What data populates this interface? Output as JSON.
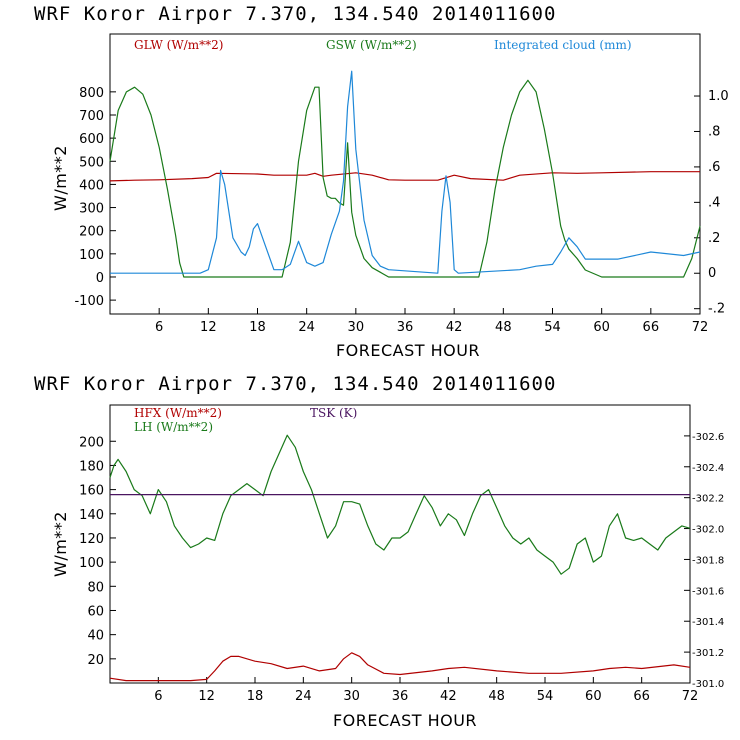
{
  "colors": {
    "red": "#b00000",
    "green": "#1a7a1a",
    "blue": "#1e88d8",
    "purple": "#4a1560",
    "axis": "#000000"
  },
  "charts": [
    {
      "title": "WRF   Koror Airpor    7.370, 134.540  2014011600",
      "xlabel": "FORECAST HOUR",
      "ylabel": "W/m**2",
      "legend": [
        "GLW (W/m**2)",
        "GSW (W/m**2)",
        "Integrated cloud (mm)"
      ]
    },
    {
      "title": "WRF   Koror Airpor    7.370, 134.540  2014011600",
      "xlabel": "FORECAST HOUR",
      "ylabel": "W/m**2",
      "legend": [
        "HFX (W/m**2)",
        "LH  (W/m**2)",
        "TSK (K)"
      ]
    }
  ],
  "chart_data": [
    {
      "type": "line",
      "title": "WRF   Koror Airpor    7.370, 134.540  2014011600",
      "xlabel": "FORECAST HOUR",
      "ylabel": "W/m**2",
      "xlim": [
        0,
        72
      ],
      "ylim": [
        -160,
        1050
      ],
      "y2lim": [
        -0.23,
        1.35
      ],
      "xticks": [
        6,
        12,
        18,
        24,
        30,
        36,
        42,
        48,
        54,
        60,
        66,
        72
      ],
      "yticks": [
        -100,
        0,
        100,
        200,
        300,
        400,
        500,
        600,
        700,
        800
      ],
      "y2ticks": [
        -0.2,
        0,
        0.2,
        0.4,
        0.6,
        0.8,
        1.0
      ],
      "y2ticklabels": [
        "-.2",
        "0",
        ".2",
        ".4",
        ".6",
        ".8",
        "1.0"
      ],
      "grid": false,
      "legend_position": "top",
      "series": [
        {
          "name": "GLW (W/m**2)",
          "axis": "left",
          "color": "#b00000",
          "x": [
            0,
            3,
            6,
            10,
            12,
            13,
            18,
            20,
            24,
            25,
            26,
            27,
            30,
            32,
            34,
            36,
            40,
            42,
            44,
            48,
            50,
            54,
            57,
            60,
            66,
            72
          ],
          "y": [
            415,
            418,
            420,
            425,
            430,
            448,
            445,
            440,
            440,
            448,
            435,
            440,
            450,
            440,
            420,
            418,
            418,
            440,
            425,
            418,
            440,
            450,
            448,
            450,
            455,
            455
          ]
        },
        {
          "name": "GSW (W/m**2)",
          "axis": "left",
          "color": "#1a7a1a",
          "x": [
            0,
            1,
            2,
            3,
            4,
            5,
            6,
            7,
            8,
            8.5,
            9,
            21,
            22,
            23,
            24,
            25,
            25.5,
            26,
            26.5,
            27,
            27.5,
            28,
            28.5,
            29,
            29.5,
            30,
            31,
            32,
            33,
            34,
            36,
            45,
            46,
            47,
            48,
            49,
            50,
            51,
            52,
            53,
            54,
            55,
            55.5,
            56,
            57,
            58,
            60,
            70,
            71,
            72
          ],
          "y": [
            500,
            720,
            800,
            820,
            790,
            700,
            560,
            380,
            180,
            60,
            0,
            0,
            150,
            500,
            720,
            820,
            820,
            430,
            350,
            340,
            340,
            320,
            310,
            580,
            280,
            180,
            80,
            40,
            20,
            0,
            0,
            0,
            150,
            380,
            560,
            700,
            800,
            850,
            800,
            640,
            450,
            220,
            160,
            120,
            80,
            30,
            0,
            0,
            80,
            220
          ]
        },
        {
          "name": "Integrated cloud (mm)",
          "axis": "right",
          "color": "#1e88d8",
          "x": [
            0,
            11,
            12,
            13,
            13.5,
            14,
            15,
            16,
            16.5,
            17,
            17.5,
            18,
            19,
            20,
            21,
            22,
            23,
            24,
            25,
            26,
            27,
            28,
            28.5,
            29,
            29.5,
            30,
            31,
            32,
            33,
            34,
            40,
            40.5,
            41,
            41.5,
            42,
            42.5,
            50,
            52,
            54,
            55,
            56,
            57,
            58,
            62,
            66,
            70,
            72
          ],
          "y": [
            0,
            0,
            0.02,
            0.2,
            0.58,
            0.5,
            0.2,
            0.12,
            0.1,
            0.15,
            0.25,
            0.28,
            0.15,
            0.02,
            0.02,
            0.05,
            0.18,
            0.06,
            0.04,
            0.06,
            0.22,
            0.35,
            0.52,
            0.94,
            1.14,
            0.7,
            0.3,
            0.1,
            0.04,
            0.02,
            0.0,
            0.35,
            0.55,
            0.4,
            0.02,
            0.0,
            0.02,
            0.04,
            0.05,
            0.12,
            0.2,
            0.15,
            0.08,
            0.08,
            0.12,
            0.1,
            0.12
          ]
        }
      ]
    },
    {
      "type": "line",
      "title": "WRF   Koror Airpor    7.370, 134.540  2014011600",
      "xlabel": "FORECAST HOUR",
      "ylabel": "W/m**2",
      "xlim": [
        0,
        72
      ],
      "ylim": [
        0,
        230
      ],
      "y2lim": [
        301.0,
        302.8
      ],
      "xticks": [
        6,
        12,
        18,
        24,
        30,
        36,
        42,
        48,
        54,
        60,
        66,
        72
      ],
      "yticks": [
        20,
        40,
        60,
        80,
        100,
        120,
        140,
        160,
        180,
        200
      ],
      "y2ticks": [
        301.0,
        301.2,
        301.4,
        301.6,
        301.8,
        302.0,
        302.2,
        302.4,
        302.6
      ],
      "y2ticklabels": [
        "-301.0",
        "-301.2",
        "-301.4",
        "-301.6",
        "-301.8",
        "-302.0",
        "-302.2",
        "-302.4",
        "-302.6"
      ],
      "grid": false,
      "legend_position": "top-left",
      "series": [
        {
          "name": "HFX (W/m**2)",
          "axis": "left",
          "color": "#b00000",
          "x": [
            0,
            2,
            6,
            10,
            12,
            13,
            14,
            15,
            16,
            18,
            20,
            22,
            24,
            26,
            28,
            29,
            30,
            31,
            32,
            34,
            36,
            40,
            42,
            44,
            48,
            52,
            56,
            60,
            62,
            64,
            66,
            70,
            72
          ],
          "y": [
            4,
            2,
            2,
            2,
            3,
            10,
            18,
            22,
            22,
            18,
            16,
            12,
            14,
            10,
            12,
            20,
            25,
            22,
            15,
            8,
            7,
            10,
            12,
            13,
            10,
            8,
            8,
            10,
            12,
            13,
            12,
            15,
            13
          ]
        },
        {
          "name": "LH  (W/m**2)",
          "axis": "left",
          "color": "#1a7a1a",
          "x": [
            0,
            0.5,
            1,
            2,
            3,
            4,
            5,
            6,
            7,
            8,
            9,
            10,
            11,
            12,
            13,
            14,
            15,
            16,
            17,
            18,
            19,
            20,
            21,
            22,
            23,
            24,
            25,
            26,
            27,
            28,
            29,
            30,
            31,
            32,
            33,
            34,
            35,
            36,
            37,
            38,
            39,
            40,
            41,
            42,
            43,
            44,
            45,
            46,
            47,
            48,
            49,
            50,
            51,
            52,
            53,
            54,
            55,
            56,
            57,
            58,
            59,
            60,
            61,
            62,
            63,
            64,
            65,
            66,
            67,
            68,
            69,
            70,
            71,
            72
          ],
          "y": [
            170,
            180,
            185,
            175,
            160,
            155,
            140,
            160,
            150,
            130,
            120,
            112,
            115,
            120,
            118,
            140,
            155,
            160,
            165,
            160,
            155,
            175,
            190,
            205,
            195,
            175,
            160,
            140,
            120,
            130,
            150,
            150,
            148,
            130,
            115,
            110,
            120,
            120,
            125,
            140,
            155,
            145,
            130,
            140,
            135,
            122,
            140,
            155,
            160,
            145,
            130,
            120,
            115,
            120,
            110,
            105,
            100,
            90,
            95,
            115,
            120,
            100,
            105,
            130,
            140,
            120,
            118,
            120,
            115,
            110,
            120,
            125,
            130,
            128
          ]
        },
        {
          "name": "TSK (K)",
          "axis": "right",
          "color": "#4a1560",
          "x": [
            0,
            72
          ],
          "y": [
            302.22,
            302.22
          ]
        }
      ]
    }
  ]
}
